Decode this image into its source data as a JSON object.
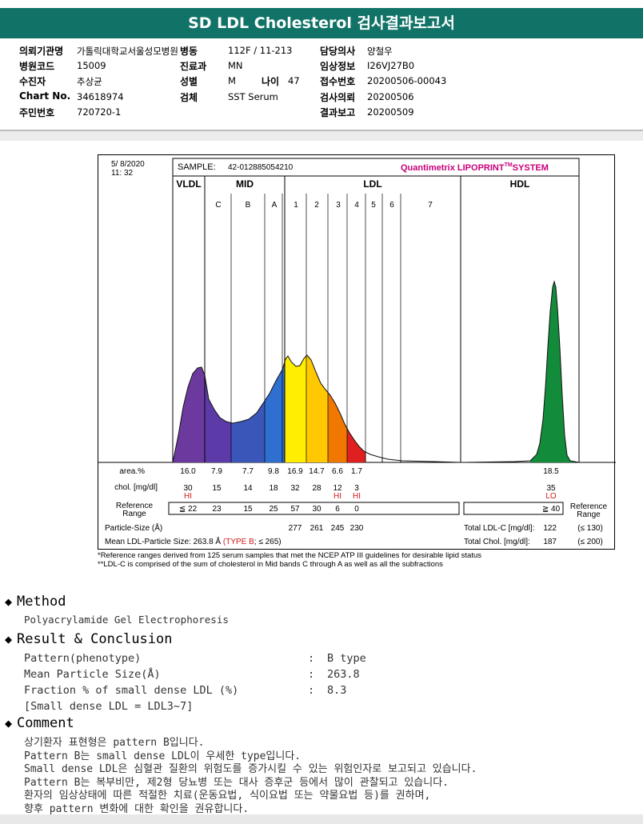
{
  "title": "SD LDL Cholesterol 검사결과보고서",
  "patient": {
    "rows": [
      [
        [
          "의뢰기관명",
          "가톨릭대학교서울성모병원"
        ],
        [
          "병동",
          "112F / 11-213"
        ],
        [
          "담당의사",
          "양철우"
        ]
      ],
      [
        [
          "병원코드",
          "15009"
        ],
        [
          "진료과",
          "MN"
        ],
        [
          "임상정보",
          "I26VJ27B0"
        ]
      ],
      [
        [
          "수진자",
          "추상균"
        ],
        [
          "성별",
          "M"
        ],
        [
          "접수번호",
          "20200506-00043"
        ]
      ],
      [
        [
          "Chart No.",
          "34618974"
        ],
        [
          "검체",
          "SST Serum"
        ],
        [
          "검사의뢰",
          "20200506"
        ]
      ],
      [
        [
          "주민번호",
          "720720-1"
        ],
        null,
        [
          "결과보고",
          "20200509"
        ]
      ]
    ],
    "age_label": "나이",
    "age_value": "47"
  },
  "chart_data": {
    "type": "area",
    "header": {
      "date": "5/ 8/2020",
      "time": "11: 32",
      "sample_label": "SAMPLE:",
      "sample_id": "42-012885054210",
      "brand": "Quantimetrix LIPOPRINT",
      "brand_tm": "TM",
      "brand_suffix": "SYSTEM"
    },
    "groups": [
      "VLDL",
      "MID",
      "LDL",
      "HDL"
    ],
    "bands": [
      "C",
      "B",
      "A",
      "1",
      "2",
      "3",
      "4",
      "5",
      "6",
      "7"
    ],
    "fractions": [
      {
        "band": "VLDL",
        "area": "16.0",
        "chol": "30",
        "flag": "HI",
        "ref": "≦ 22",
        "color": "#6c3a9e"
      },
      {
        "band": "C",
        "area": "7.9",
        "chol": "15",
        "flag": "",
        "ref": "23",
        "color": "#5c3aa8"
      },
      {
        "band": "B",
        "area": "7.7",
        "chol": "14",
        "flag": "",
        "ref": "15",
        "color": "#3a56b8"
      },
      {
        "band": "A",
        "area": "9.8",
        "chol": "18",
        "flag": "",
        "ref": "25",
        "color": "#2f6fd0"
      },
      {
        "band": "1",
        "area": "16.9",
        "chol": "32",
        "flag": "",
        "ref": "57",
        "color": "#ffee00"
      },
      {
        "band": "2",
        "area": "14.7",
        "chol": "28",
        "flag": "",
        "ref": "30",
        "color": "#ffc800"
      },
      {
        "band": "3",
        "area": "6.6",
        "chol": "12",
        "flag": "HI",
        "ref": "6",
        "color": "#f07800"
      },
      {
        "band": "4",
        "area": "1.7",
        "chol": "3",
        "flag": "HI",
        "ref": "0",
        "color": "#e02020"
      },
      {
        "band": "HDL",
        "area": "18.5",
        "chol": "35",
        "flag": "LO",
        "ref": "≧ 40",
        "color": "#128c3a"
      }
    ],
    "row_labels": {
      "area": "area.%",
      "chol": "chol. [mg/dl]",
      "ref1": "Reference",
      "ref2": "Range",
      "particle": "Particle-Size (Å)",
      "mean_prefix": "Mean LDL-Particle Size:",
      "mean_value": "263.8 Å",
      "mean_type": "(TYPE B",
      "mean_suffix": "; ≤ 265)"
    },
    "particle_sizes": [
      "277",
      "261",
      "245",
      "230"
    ],
    "totals": [
      {
        "label": "Total LDL-C [mg/dl]:",
        "value": "122",
        "ref": "(≤ 130)"
      },
      {
        "label": "Total Chol. [mg/dl]:",
        "value": "187",
        "ref": "(≤ 200)"
      }
    ],
    "ref_side1": "Reference",
    "ref_side2": "Range"
  },
  "footnotes": [
    "*Reference ranges derived from 125 serum samples that met the NCEP ATP III guidelines for desirable lipid status",
    "**LDL-C is comprised of the sum of cholesterol in Mid bands C through A as well as all the subfractions"
  ],
  "method": {
    "heading": "Method",
    "text": "Polyacrylamide Gel Electrophoresis"
  },
  "result": {
    "heading": "Result & Conclusion",
    "rows": [
      {
        "label": "Pattern(phenotype)",
        "value": "B type"
      },
      {
        "label": "Mean Particle Size(Å)",
        "value": "263.8"
      },
      {
        "label": "Fraction % of small dense LDL (%)",
        "value": "8.3"
      }
    ],
    "note": "[Small dense LDL = LDL3~7]",
    "colon": ":"
  },
  "comment": {
    "heading": "Comment",
    "lines": [
      "상기환자 표현형은 pattern B입니다.",
      "Pattern B는 small dense LDL이 우세한 type입니다.",
      "Small dense LDL은 심혈관 질환의 위험도를 증가시킬 수 있는 위험인자로 보고되고 있습니다.",
      "Pattern B는 복부비만, 제2형 당뇨병 또는 대사 증후군 등에서 많이 관찰되고 있습니다.",
      "환자의 임상상태에 따른 적절한 치료(운동요법, 식이요법 또는 약물요법 등)를 권하며,",
      "향후 pattern 변화에 대한 확인을 권유합니다."
    ]
  },
  "colors": {
    "title_bg": "#117367",
    "brand": "#c8007a",
    "flag": "#d21a1a",
    "type_b": "#d21a1a"
  }
}
